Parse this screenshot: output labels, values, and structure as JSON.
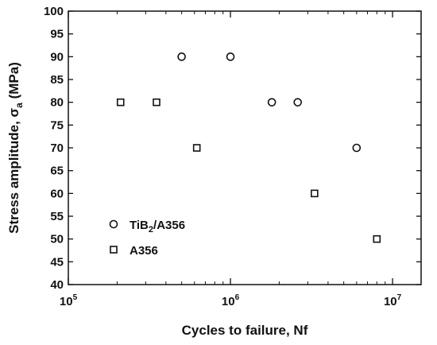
{
  "chart_data": {
    "type": "scatter",
    "title": "",
    "xlabel": "Cycles to failure, Nf",
    "ylabel_prefix": "Stress amplitude, σ",
    "ylabel_sub": "a",
    "ylabel_suffix": " (MPa)",
    "xscale": "log",
    "xlim": [
      100000,
      15000000
    ],
    "ylim": [
      40,
      100
    ],
    "x_ticks": [
      {
        "base": "10",
        "exp": "5",
        "value": 100000
      },
      {
        "base": "10",
        "exp": "6",
        "value": 1000000
      },
      {
        "base": "10",
        "exp": "7",
        "value": 10000000
      }
    ],
    "y_ticks": [
      "40",
      "45",
      "50",
      "55",
      "60",
      "65",
      "70",
      "75",
      "80",
      "85",
      "90",
      "95",
      "100"
    ],
    "grid": false,
    "legend_position": "bottom-left",
    "series": [
      {
        "name_main": "TiB",
        "name_sub": "2",
        "name_rest": "/A356",
        "marker": "circle",
        "points": [
          [
            500000,
            90
          ],
          [
            1000000,
            90
          ],
          [
            1800000,
            80
          ],
          [
            2600000,
            80
          ],
          [
            6000000,
            70
          ]
        ]
      },
      {
        "name_main": "A356",
        "name_sub": "",
        "name_rest": "",
        "marker": "square",
        "points": [
          [
            210000,
            80
          ],
          [
            350000,
            80
          ],
          [
            620000,
            70
          ],
          [
            3300000,
            60
          ],
          [
            8000000,
            50
          ]
        ]
      }
    ]
  }
}
